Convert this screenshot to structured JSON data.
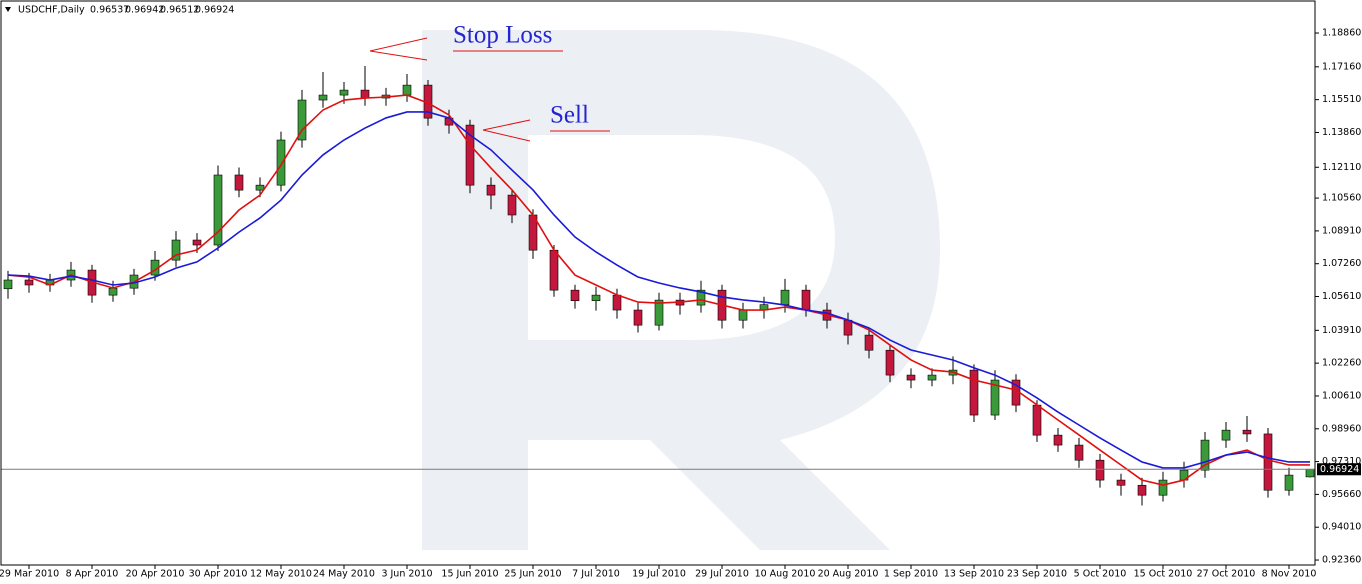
{
  "chart_data": {
    "type": "candlestick",
    "symbol": "USDCHF,Daily",
    "ohlc": [
      0.96537,
      0.96942,
      0.96512,
      0.96924
    ],
    "up_color": "#3a9a3a",
    "down_color": "#c4173d",
    "open": [
      1.06,
      1.0644,
      1.0619,
      1.0644,
      1.0694,
      1.0568,
      1.0603,
      1.0669,
      1.0744,
      1.0845,
      1.082,
      1.1172,
      1.1096,
      1.1121,
      1.1348,
      1.1549,
      1.1574,
      1.1599,
      1.1559,
      1.1574,
      1.1624,
      1.1458,
      1.1423,
      1.1121,
      1.1071,
      1.0971,
      1.0794,
      1.0593,
      1.054,
      1.0568,
      1.0493,
      1.0417,
      1.0543,
      1.0518,
      1.0593,
      1.0442,
      1.0493,
      1.052,
      1.0593,
      1.0493,
      1.0442,
      1.0367,
      1.0291,
      1.0166,
      1.0141,
      1.0166,
      1.0191,
      0.9965,
      1.0141,
      1.0015,
      0.9864,
      0.9814,
      0.9738,
      0.9638,
      0.9612,
      0.9562,
      0.9638,
      0.9688,
      0.9839,
      0.9889,
      0.987,
      0.9587,
      0.9654
    ],
    "high": [
      1.069,
      1.068,
      1.0675,
      1.0735,
      1.072,
      1.064,
      1.07,
      1.079,
      1.089,
      1.088,
      1.122,
      1.121,
      1.116,
      1.139,
      1.16,
      1.169,
      1.164,
      1.172,
      1.161,
      1.168,
      1.165,
      1.15,
      1.145,
      1.116,
      1.11,
      1.1,
      1.082,
      1.062,
      1.061,
      1.06,
      1.053,
      1.058,
      1.058,
      1.064,
      1.062,
      1.053,
      1.056,
      1.065,
      1.062,
      1.053,
      1.048,
      1.04,
      1.032,
      1.02,
      1.02,
      1.026,
      1.022,
      1.019,
      1.017,
      1.004,
      0.99,
      0.985,
      0.977,
      0.967,
      0.965,
      0.968,
      0.973,
      0.988,
      0.993,
      0.996,
      0.99,
      0.97,
      0.9694
    ],
    "low": [
      1.055,
      1.058,
      1.0585,
      1.061,
      1.053,
      1.0535,
      1.057,
      1.064,
      1.071,
      1.078,
      1.079,
      1.106,
      1.106,
      1.109,
      1.131,
      1.151,
      1.153,
      1.152,
      1.152,
      1.154,
      1.142,
      1.138,
      1.108,
      1.1,
      1.093,
      1.075,
      1.056,
      1.05,
      1.049,
      1.045,
      1.038,
      1.039,
      1.047,
      1.048,
      1.04,
      1.04,
      1.045,
      1.048,
      1.046,
      1.04,
      1.032,
      1.025,
      1.013,
      1.01,
      1.011,
      1.012,
      0.993,
      0.994,
      0.998,
      0.983,
      0.978,
      0.97,
      0.96,
      0.956,
      0.951,
      0.953,
      0.96,
      0.965,
      0.98,
      0.983,
      0.955,
      0.956,
      0.9651
    ],
    "close": [
      1.0644,
      1.0619,
      1.0644,
      1.0694,
      1.0568,
      1.0603,
      1.0669,
      1.0744,
      1.0845,
      1.082,
      1.1172,
      1.1096,
      1.1121,
      1.1348,
      1.1549,
      1.1574,
      1.1599,
      1.1559,
      1.1574,
      1.1624,
      1.1458,
      1.1423,
      1.1121,
      1.1071,
      1.0971,
      1.0794,
      1.0593,
      1.054,
      1.0568,
      1.0493,
      1.0417,
      1.0543,
      1.0518,
      1.0593,
      1.0442,
      1.0493,
      1.052,
      1.0593,
      1.0493,
      1.0442,
      1.0367,
      1.0291,
      1.0166,
      1.0141,
      1.0166,
      1.0191,
      0.9965,
      1.0141,
      1.0015,
      0.9864,
      0.9814,
      0.9738,
      0.9638,
      0.9612,
      0.9562,
      0.9638,
      0.9688,
      0.9839,
      0.9889,
      0.987,
      0.9587,
      0.9663,
      0.96924
    ],
    "lines": [
      {
        "color": "#e01010",
        "values": [
          1.0669,
          1.0659,
          1.0619,
          1.0669,
          1.0634,
          1.0604,
          1.0634,
          1.0694,
          1.077,
          1.0795,
          1.0885,
          1.0996,
          1.1071,
          1.1222,
          1.1398,
          1.1499,
          1.1549,
          1.1559,
          1.1564,
          1.1574,
          1.1534,
          1.1474,
          1.1323,
          1.1207,
          1.1097,
          1.0971,
          1.0795,
          1.0669,
          1.0619,
          1.0569,
          1.0533,
          1.0528,
          1.0533,
          1.0544,
          1.0518,
          1.0493,
          1.0493,
          1.0508,
          1.0493,
          1.0468,
          1.0443,
          1.0393,
          1.0317,
          1.0242,
          1.0191,
          1.0181,
          1.0141,
          1.0116,
          1.0091,
          1.0016,
          0.994,
          0.9865,
          0.9789,
          0.9714,
          0.9638,
          0.9613,
          0.9638,
          0.9714,
          0.9764,
          0.9789,
          0.9739,
          0.9714,
          0.9714
        ]
      },
      {
        "color": "#1a1ad8",
        "values": [
          1.0669,
          1.0664,
          1.0644,
          1.0664,
          1.0644,
          1.0619,
          1.0629,
          1.0659,
          1.0704,
          1.0735,
          1.0805,
          1.0885,
          1.0956,
          1.1046,
          1.1172,
          1.1273,
          1.1348,
          1.1408,
          1.1459,
          1.1489,
          1.1489,
          1.1459,
          1.1373,
          1.1298,
          1.1197,
          1.1097,
          1.0971,
          1.086,
          1.0785,
          1.0719,
          1.0659,
          1.0629,
          1.0604,
          1.0584,
          1.0559,
          1.0544,
          1.0533,
          1.0518,
          1.0493,
          1.0478,
          1.0443,
          1.0403,
          1.0342,
          1.0292,
          1.0267,
          1.0242,
          1.0202,
          1.0166,
          1.0116,
          1.0051,
          0.998,
          0.9915,
          0.985,
          0.9789,
          0.9729,
          0.9699,
          0.9699,
          0.9729,
          0.9764,
          0.9779,
          0.9749,
          0.9729,
          0.9729
        ]
      }
    ],
    "annotations": [
      "Stop Loss",
      "Sell"
    ],
    "ylim": [
      0.9211,
      1.2047
    ],
    "yticks": [
      {
        "value": 1.1886,
        "label": "1.18860"
      },
      {
        "value": 1.1716,
        "label": "1.17160"
      },
      {
        "value": 1.1551,
        "label": "1.15510"
      },
      {
        "value": 1.1386,
        "label": "1.13860"
      },
      {
        "value": 1.1211,
        "label": "1.12110"
      },
      {
        "value": 1.1056,
        "label": "1.10560"
      },
      {
        "value": 1.0891,
        "label": "1.08910"
      },
      {
        "value": 1.0726,
        "label": "1.07260"
      },
      {
        "value": 1.0561,
        "label": "1.05610"
      },
      {
        "value": 1.0391,
        "label": "1.03910"
      },
      {
        "value": 1.0226,
        "label": "1.02260"
      },
      {
        "value": 1.0061,
        "label": "1.00610"
      },
      {
        "value": 0.9896,
        "label": "0.98960"
      },
      {
        "value": 0.9731,
        "label": "0.97310"
      },
      {
        "value": 0.9566,
        "label": "0.95660"
      },
      {
        "value": 0.9401,
        "label": "0.94010"
      },
      {
        "value": 0.9236,
        "label": "0.92360"
      }
    ],
    "xticks": [
      {
        "value": 1,
        "label": "29 Mar 2010"
      },
      {
        "value": 4,
        "label": "8 Apr 2010"
      },
      {
        "value": 7,
        "label": "20 Apr 2010"
      },
      {
        "value": 10,
        "label": "30 Apr 2010"
      },
      {
        "value": 13,
        "label": "12 May 2010"
      },
      {
        "value": 16,
        "label": "24 May 2010"
      },
      {
        "value": 19,
        "label": "3 Jun 2010"
      },
      {
        "value": 22,
        "label": "15 Jun 2010"
      },
      {
        "value": 25,
        "label": "25 Jun 2010"
      },
      {
        "value": 28,
        "label": "7 Jul 2010"
      },
      {
        "value": 31,
        "label": "19 Jul 2010"
      },
      {
        "value": 34,
        "label": "29 Jul 2010"
      },
      {
        "value": 37,
        "label": "10 Aug 2010"
      },
      {
        "value": 40,
        "label": "20 Aug 2010"
      },
      {
        "value": 43,
        "label": "1 Sep 2010"
      },
      {
        "value": 46,
        "label": "13 Sep 2010"
      },
      {
        "value": 49,
        "label": "23 Sep 2010"
      },
      {
        "value": 52,
        "label": "5 Oct 2010"
      },
      {
        "value": 55,
        "label": "15 Oct 2010"
      },
      {
        "value": 58,
        "label": "27 Oct 2010"
      },
      {
        "value": 61,
        "label": "8 Nov 2010"
      }
    ]
  }
}
